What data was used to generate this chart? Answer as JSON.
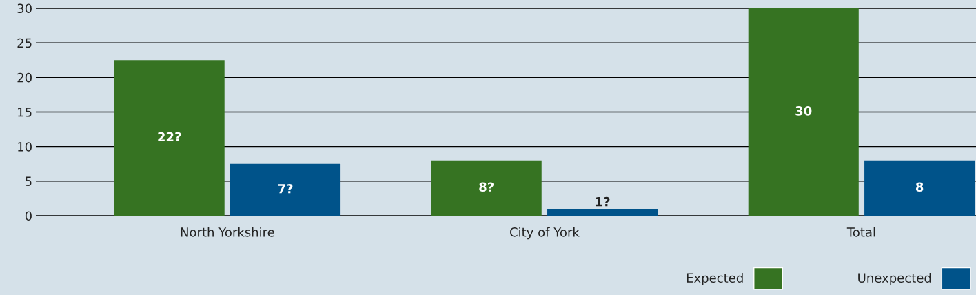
{
  "chart_data": {
    "type": "bar",
    "categories": [
      "North Yorkshire",
      "City of York",
      "Total"
    ],
    "series": [
      {
        "name": "Expected",
        "color": "#367322",
        "values": [
          22.5,
          8,
          30
        ],
        "value_labels": [
          "22?",
          "8?",
          "30"
        ]
      },
      {
        "name": "Unexpected",
        "color": "#00538a",
        "values": [
          7.5,
          1,
          8
        ],
        "value_labels": [
          "7?",
          "1?",
          "8"
        ]
      }
    ],
    "ylim": [
      0,
      30
    ],
    "yticks": [
      0,
      5,
      10,
      15,
      20,
      25,
      30
    ],
    "grid": "y",
    "legend": "bottom right"
  }
}
